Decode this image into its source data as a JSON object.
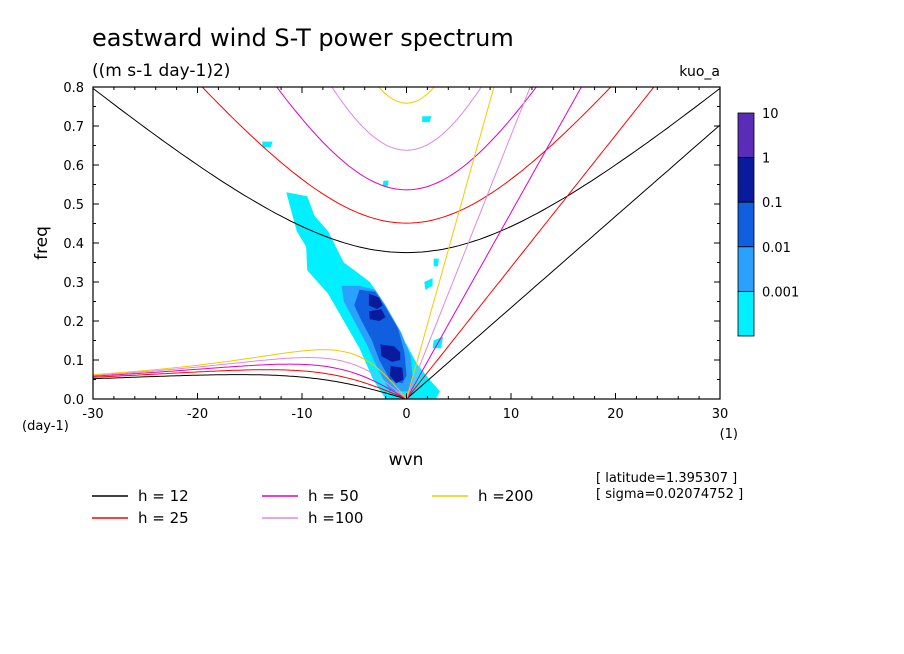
{
  "chart_data": {
    "type": "heatmap",
    "title": "eastward wind S-T power spectrum",
    "subtitle": "((m s-1 day-1)2)",
    "tag": "kuo_a",
    "xlabel": "wvn",
    "ylabel": "freq",
    "x_unit": "(1)",
    "y_unit": "(day-1)",
    "xlim": [
      -30,
      30
    ],
    "ylim": [
      0,
      0.8
    ],
    "xticks": [
      "-30",
      "-20",
      "-10",
      "0",
      "10",
      "20",
      "30"
    ],
    "yticks": [
      "0.0",
      "0.1",
      "0.2",
      "0.3",
      "0.4",
      "0.5",
      "0.6",
      "0.7",
      "0.8"
    ],
    "colorbar": {
      "labels": [
        "10",
        "1",
        "0.1",
        "0.01",
        "0.001"
      ],
      "colors": [
        "#5a2db8",
        "#0a1a9c",
        "#0f5fe0",
        "#2aa0ff",
        "#00f0ff"
      ]
    },
    "contour_levels": [
      0.001,
      0.01,
      0.1,
      1
    ],
    "power_regions": [
      {
        "level": 0.001,
        "color": "#00f0ff",
        "polygons": [
          [
            [
              -11.5,
              0.53
            ],
            [
              -9.5,
              0.52
            ],
            [
              -8.8,
              0.47
            ],
            [
              -7.5,
              0.43
            ],
            [
              -6,
              0.35
            ],
            [
              -5,
              0.33
            ],
            [
              -3.5,
              0.3
            ],
            [
              -2,
              0.24
            ],
            [
              -1.5,
              0.18
            ],
            [
              0,
              0.14
            ],
            [
              1,
              0.09
            ],
            [
              2.2,
              0.05
            ],
            [
              3.2,
              0.02
            ],
            [
              2.8,
              0.0
            ],
            [
              -2,
              0.0
            ],
            [
              -3.2,
              0.05
            ],
            [
              -4.5,
              0.13
            ],
            [
              -6,
              0.2
            ],
            [
              -7.5,
              0.27
            ],
            [
              -9.5,
              0.33
            ],
            [
              -9.6,
              0.39
            ],
            [
              -10.5,
              0.43
            ],
            [
              -11,
              0.48
            ]
          ],
          [
            [
              1.7,
              0.3
            ],
            [
              2.5,
              0.31
            ],
            [
              2.5,
              0.29
            ],
            [
              1.8,
              0.28
            ]
          ],
          [
            [
              2.6,
              0.36
            ],
            [
              3.1,
              0.36
            ],
            [
              3.0,
              0.34
            ],
            [
              2.6,
              0.34
            ]
          ],
          [
            [
              2.6,
              0.15
            ],
            [
              3.5,
              0.16
            ],
            [
              3.3,
              0.13
            ],
            [
              2.5,
              0.13
            ]
          ],
          [
            [
              -13.8,
              0.66
            ],
            [
              -12.8,
              0.66
            ],
            [
              -13.0,
              0.645
            ],
            [
              -13.8,
              0.645
            ]
          ],
          [
            [
              -2.2,
              0.56
            ],
            [
              -1.7,
              0.56
            ],
            [
              -1.8,
              0.545
            ],
            [
              -2.3,
              0.545
            ]
          ],
          [
            [
              1.5,
              0.725
            ],
            [
              2.4,
              0.725
            ],
            [
              2.2,
              0.71
            ],
            [
              1.5,
              0.71
            ]
          ]
        ]
      },
      {
        "level": 0.01,
        "color": "#2aa0ff",
        "polygons": [
          [
            [
              -6.2,
              0.29
            ],
            [
              -4.5,
              0.29
            ],
            [
              -3,
              0.28
            ],
            [
              -2,
              0.24
            ],
            [
              -0.5,
              0.17
            ],
            [
              0.4,
              0.11
            ],
            [
              0.6,
              0.05
            ],
            [
              0.3,
              0.02
            ],
            [
              -1.6,
              0.02
            ],
            [
              -2.8,
              0.08
            ],
            [
              -3.8,
              0.14
            ],
            [
              -5,
              0.2
            ],
            [
              -6,
              0.25
            ]
          ]
        ]
      },
      {
        "level": 0.1,
        "color": "#0f5fe0",
        "polygons": [
          [
            [
              -4.5,
              0.28
            ],
            [
              -3,
              0.275
            ],
            [
              -2,
              0.235
            ],
            [
              -0.8,
              0.18
            ],
            [
              -0.2,
              0.12
            ],
            [
              0,
              0.06
            ],
            [
              -0.4,
              0.04
            ],
            [
              -1.6,
              0.05
            ],
            [
              -2.6,
              0.1
            ],
            [
              -3.3,
              0.15
            ],
            [
              -4.3,
              0.2
            ],
            [
              -5,
              0.24
            ]
          ]
        ]
      },
      {
        "level": 1,
        "color": "#0a1a9c",
        "polygons": [
          [
            [
              -3.6,
              0.27
            ],
            [
              -2.6,
              0.26
            ],
            [
              -2.3,
              0.24
            ],
            [
              -2.8,
              0.23
            ],
            [
              -3.6,
              0.24
            ]
          ],
          [
            [
              -3.6,
              0.225
            ],
            [
              -2.4,
              0.23
            ],
            [
              -2.0,
              0.21
            ],
            [
              -2.6,
              0.2
            ],
            [
              -3.5,
              0.205
            ]
          ],
          [
            [
              -2.5,
              0.14
            ],
            [
              -1.2,
              0.135
            ],
            [
              -0.6,
              0.12
            ],
            [
              -0.6,
              0.1
            ],
            [
              -1.4,
              0.095
            ],
            [
              -2.4,
              0.11
            ]
          ],
          [
            [
              -1.5,
              0.085
            ],
            [
              -0.4,
              0.08
            ],
            [
              -0.3,
              0.05
            ],
            [
              -1.0,
              0.04
            ],
            [
              -1.6,
              0.06
            ]
          ]
        ]
      }
    ],
    "dispersion_series": [
      {
        "name": "h = 12",
        "equivalent_depth": 12,
        "color": "#000000"
      },
      {
        "name": "h = 25",
        "equivalent_depth": 25,
        "color": "#ff0000"
      },
      {
        "name": "h = 50",
        "equivalent_depth": 50,
        "color": "#e000c8"
      },
      {
        "name": "h =100",
        "equivalent_depth": 100,
        "color": "#e088e0"
      },
      {
        "name": "h =200",
        "equivalent_depth": 200,
        "color": "#f5c800"
      }
    ],
    "annotations": [
      "[ latitude=1.395307 ]",
      "[ sigma=0.02074752 ]"
    ]
  }
}
